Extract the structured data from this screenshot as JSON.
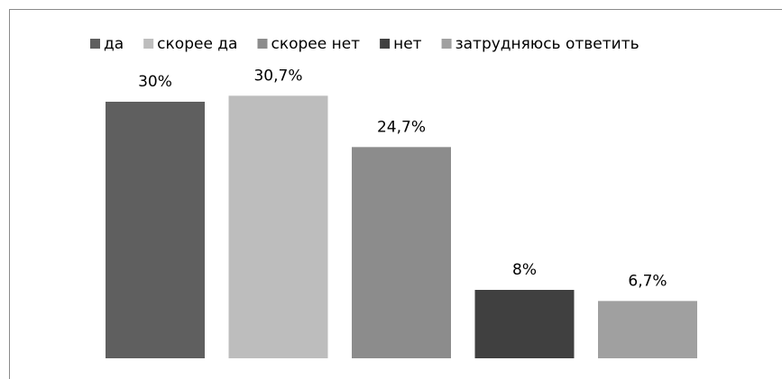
{
  "chart_data": {
    "type": "bar",
    "legend": "top",
    "series": [
      {
        "name": "да",
        "color": "#5f5f5f",
        "values": [
          30
        ],
        "value_labels": [
          "30%"
        ]
      },
      {
        "name": "скорее да",
        "color": "#bdbdbd",
        "values": [
          30.7
        ],
        "value_labels": [
          "30,7%"
        ]
      },
      {
        "name": "скорее нет",
        "color": "#8c8c8c",
        "values": [
          24.7
        ],
        "value_labels": [
          "24,7%"
        ]
      },
      {
        "name": "нет",
        "color": "#404040",
        "values": [
          8
        ],
        "value_labels": [
          "8%"
        ]
      },
      {
        "name": "затрудняюсь ответить",
        "color": "#a0a0a0",
        "values": [
          6.7
        ],
        "value_labels": [
          "6,7%"
        ]
      }
    ]
  }
}
